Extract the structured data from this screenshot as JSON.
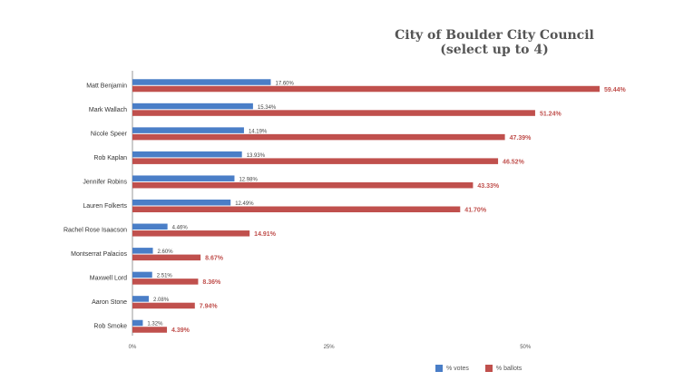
{
  "chart_data": {
    "type": "bar",
    "orientation": "horizontal",
    "title": "City of Boulder City Council",
    "subtitle": "(select up to 4)",
    "categories": [
      "Matt Benjamin",
      "Mark Wallach",
      "Nicole Speer",
      "Rob Kaplan",
      "Jennifer Robins",
      "Lauren Folkerts",
      "Rachel Rose Isaacson",
      "Montserrat Palacios",
      "Maxwell Lord",
      "Aaron Stone",
      "Rob Smoke"
    ],
    "series": [
      {
        "name": "% votes",
        "color": "#4a7ec7",
        "values": [
          17.6,
          15.34,
          14.19,
          13.93,
          12.98,
          12.49,
          4.46,
          2.6,
          2.51,
          2.08,
          1.32
        ],
        "labels": [
          "17.60%",
          "15.34%",
          "14.19%",
          "13.93%",
          "12.98%",
          "12.49%",
          "4.46%",
          "2.60%",
          "2.51%",
          "2.08%",
          "1.32%"
        ]
      },
      {
        "name": "% ballots",
        "color": "#c0504d",
        "values": [
          59.44,
          51.24,
          47.39,
          46.52,
          43.33,
          41.7,
          14.91,
          8.67,
          8.36,
          7.94,
          4.39
        ],
        "labels": [
          "59.44%",
          "51.24%",
          "47.39%",
          "46.52%",
          "43.33%",
          "41.70%",
          "14.91%",
          "8.67%",
          "8.36%",
          "7.94%",
          "4.39%"
        ]
      }
    ],
    "xlim": [
      0,
      60
    ],
    "xticks": [
      0,
      25,
      50
    ],
    "xtick_labels": [
      "0%",
      "25%",
      "50%"
    ],
    "grid": false,
    "legend_position": "bottom-right"
  }
}
